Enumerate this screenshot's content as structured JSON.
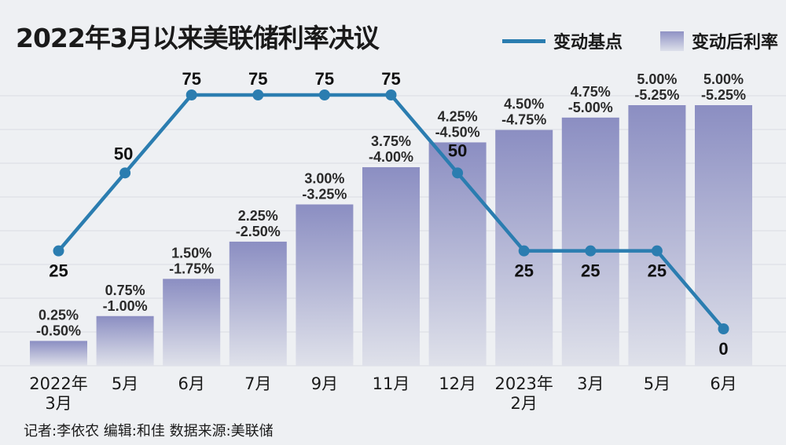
{
  "title": "2022年3月以来美联储利率决议",
  "legend": {
    "line_label": "变动基点",
    "bar_label": "变动后利率"
  },
  "footer": "记者:李依农  编辑:和佳  数据来源:美联储",
  "colors": {
    "line": "#2b7db0",
    "bar_top": "#8b8ec2",
    "bar_bottom": "#dfe1ea",
    "background": "#eef0f3"
  },
  "chart_data": {
    "type": "bar",
    "categories": [
      "2022年\n3月",
      "5月",
      "6月",
      "7月",
      "9月",
      "11月",
      "12月",
      "2023年\n2月",
      "3月",
      "5月",
      "6月"
    ],
    "series": [
      {
        "type": "bar",
        "name": "变动后利率",
        "low": [
          0.25,
          0.75,
          1.5,
          2.25,
          3.0,
          3.75,
          4.25,
          4.5,
          4.75,
          5.0,
          5.0
        ],
        "high": [
          0.5,
          1.0,
          1.75,
          2.5,
          3.25,
          4.0,
          4.5,
          4.75,
          5.0,
          5.25,
          5.25
        ],
        "labels_top": [
          "0.25%",
          "0.75%",
          "1.50%",
          "2.25%",
          "3.00%",
          "3.75%",
          "4.25%",
          "4.50%",
          "4.75%",
          "5.00%",
          "5.00%"
        ],
        "labels_bottom": [
          "-0.50%",
          "-1.00%",
          "-1.75%",
          "-2.50%",
          "-3.25%",
          "-4.00%",
          "-4.50%",
          "-4.75%",
          "-5.00%",
          "-5.25%",
          "-5.25%"
        ]
      },
      {
        "type": "line",
        "name": "变动基点",
        "values": [
          25,
          50,
          75,
          75,
          75,
          75,
          50,
          25,
          25,
          25,
          0
        ]
      }
    ],
    "bar_ylim": [
      0,
      5.25
    ],
    "line_ylim": [
      0,
      75
    ]
  }
}
